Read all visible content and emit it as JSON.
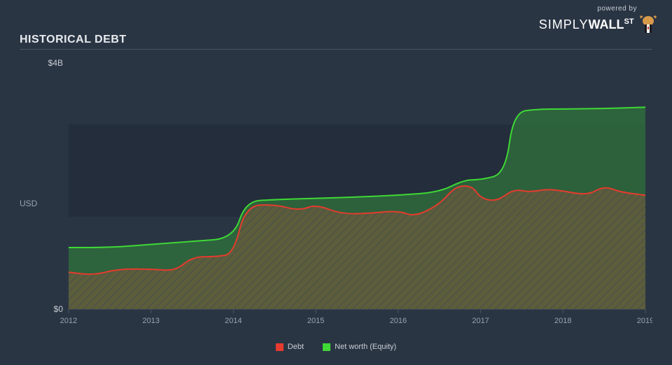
{
  "branding": {
    "powered_by": "powered by",
    "brand_light": "SIMPLY",
    "brand_bold": "WALL",
    "brand_st": "ST"
  },
  "title": "HISTORICAL DEBT",
  "chart": {
    "type": "area",
    "background_color": "#2a3544",
    "shade_band_color": "#232d3b",
    "grid_color": "#4a5565",
    "ylabel": "USD",
    "ylim": [
      0,
      4
    ],
    "yticks": [
      {
        "value": 0,
        "label": "$0"
      },
      {
        "value": 4,
        "label": "$4B"
      }
    ],
    "xlim": [
      2012,
      2019
    ],
    "xticks": [
      2012,
      2013,
      2014,
      2015,
      2016,
      2017,
      2018,
      2019
    ],
    "series": [
      {
        "name": "Net worth (Equity)",
        "legend_label": "Net worth (Equity)",
        "line_color": "#3fd836",
        "fill_color": "#2e6b3c",
        "fill_opacity": 0.85,
        "line_width": 2,
        "hatch": false,
        "points": [
          [
            2012.0,
            1.0
          ],
          [
            2012.5,
            1.0
          ],
          [
            2013.0,
            1.05
          ],
          [
            2013.5,
            1.1
          ],
          [
            2014.0,
            1.15
          ],
          [
            2014.15,
            1.75
          ],
          [
            2014.5,
            1.78
          ],
          [
            2015.0,
            1.8
          ],
          [
            2015.5,
            1.82
          ],
          [
            2016.0,
            1.85
          ],
          [
            2016.5,
            1.9
          ],
          [
            2016.8,
            2.1
          ],
          [
            2017.0,
            2.1
          ],
          [
            2017.3,
            2.2
          ],
          [
            2017.4,
            3.2
          ],
          [
            2017.7,
            3.25
          ],
          [
            2018.0,
            3.25
          ],
          [
            2018.5,
            3.26
          ],
          [
            2019.0,
            3.28
          ]
        ]
      },
      {
        "name": "Debt",
        "legend_label": "Debt",
        "line_color": "#e63b2e",
        "fill_color": "#6b5a3a",
        "fill_opacity": 0.75,
        "line_width": 2,
        "hatch": true,
        "hatch_color": "#3a4656",
        "points": [
          [
            2012.0,
            0.6
          ],
          [
            2012.3,
            0.55
          ],
          [
            2012.6,
            0.65
          ],
          [
            2013.0,
            0.65
          ],
          [
            2013.3,
            0.62
          ],
          [
            2013.5,
            0.85
          ],
          [
            2013.8,
            0.85
          ],
          [
            2014.0,
            0.9
          ],
          [
            2014.15,
            1.68
          ],
          [
            2014.5,
            1.7
          ],
          [
            2014.8,
            1.6
          ],
          [
            2015.0,
            1.7
          ],
          [
            2015.3,
            1.55
          ],
          [
            2015.6,
            1.55
          ],
          [
            2016.0,
            1.6
          ],
          [
            2016.2,
            1.5
          ],
          [
            2016.5,
            1.7
          ],
          [
            2016.7,
            2.0
          ],
          [
            2016.9,
            2.0
          ],
          [
            2017.0,
            1.8
          ],
          [
            2017.2,
            1.75
          ],
          [
            2017.4,
            1.95
          ],
          [
            2017.6,
            1.9
          ],
          [
            2017.8,
            1.95
          ],
          [
            2018.0,
            1.92
          ],
          [
            2018.3,
            1.85
          ],
          [
            2018.5,
            2.0
          ],
          [
            2018.7,
            1.9
          ],
          [
            2019.0,
            1.85
          ]
        ]
      }
    ],
    "legend": {
      "items": [
        {
          "label": "Debt",
          "color": "#e63b2e"
        },
        {
          "label": "Net worth (Equity)",
          "color": "#3fd836"
        }
      ]
    }
  }
}
